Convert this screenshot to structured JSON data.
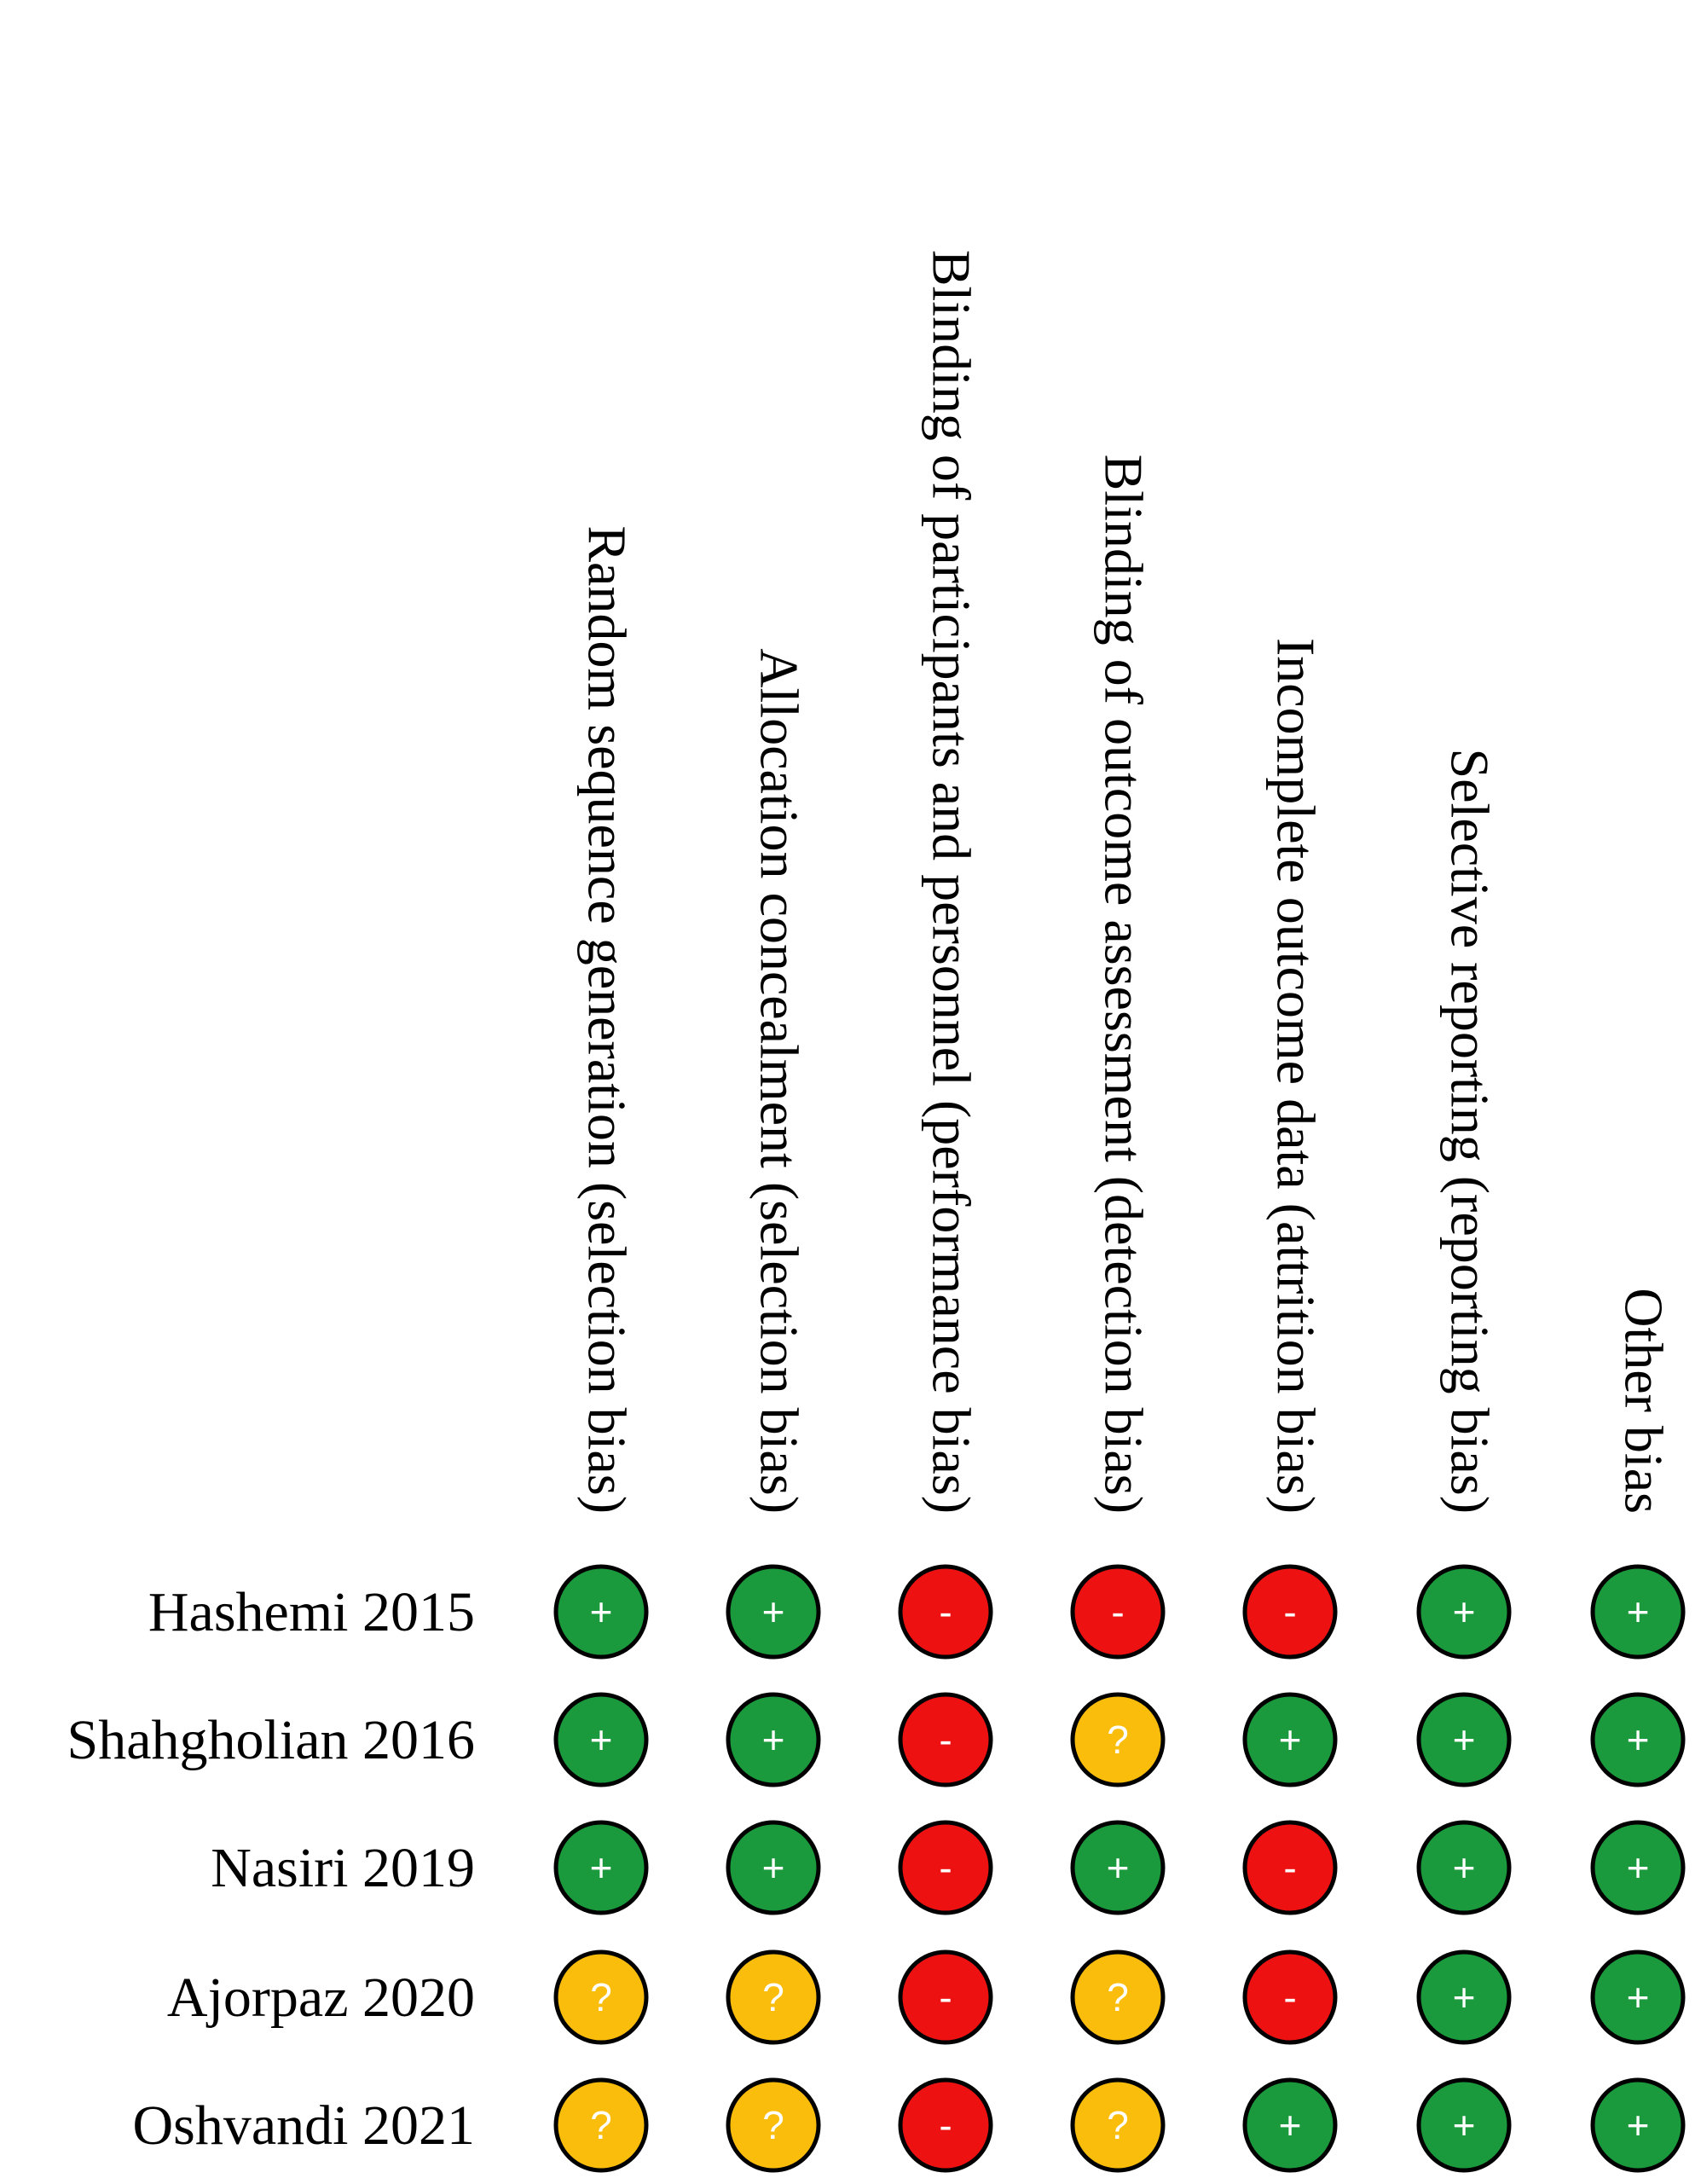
{
  "chart_data": {
    "type": "table",
    "columns": [
      "Random sequence generation (selection bias)",
      "Allocation concealment (selection bias)",
      "Blinding of participants and personnel (performance bias)",
      "Blinding of outcome assessment (detection bias)",
      "Incomplete outcome data (attrition bias)",
      "Selective reporting (reporting bias)",
      "Other bias"
    ],
    "rows": [
      "Hashemi 2015",
      "Shahgholian 2016",
      "Nasiri 2019",
      "Ajorpaz 2020",
      "Oshvandi 2021"
    ],
    "values": [
      [
        "low",
        "low",
        "high",
        "high",
        "high",
        "low",
        "low"
      ],
      [
        "low",
        "low",
        "high",
        "unclear",
        "low",
        "low",
        "low"
      ],
      [
        "low",
        "low",
        "high",
        "low",
        "high",
        "low",
        "low"
      ],
      [
        "unclear",
        "unclear",
        "high",
        "unclear",
        "high",
        "low",
        "low"
      ],
      [
        "unclear",
        "unclear",
        "high",
        "unclear",
        "low",
        "low",
        "low"
      ]
    ],
    "levels": {
      "low": {
        "symbol": "+",
        "color": "#1a9a3c"
      },
      "high": {
        "symbol": "-",
        "color": "#ee1111"
      },
      "unclear": {
        "symbol": "?",
        "color": "#fbbd0c"
      }
    },
    "outline_color": "#000000"
  }
}
